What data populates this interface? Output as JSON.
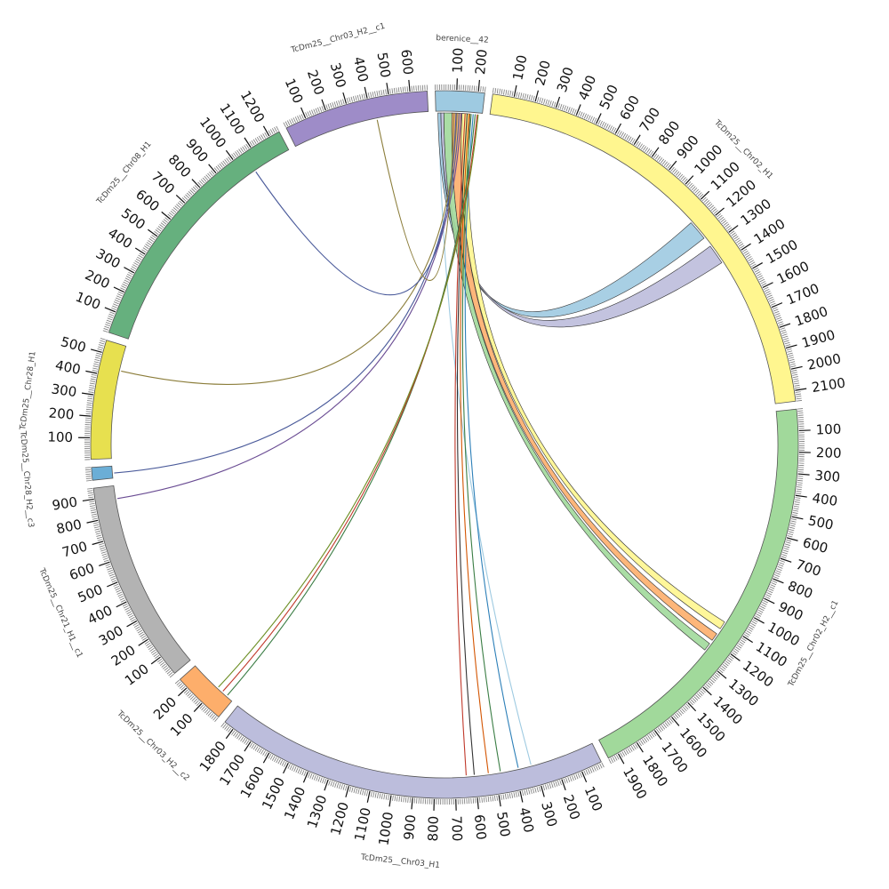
{
  "segments": [
    {
      "id": "berenice",
      "name": "berenice__42",
      "length": 230,
      "color": "#9ecae1",
      "tick_step": 100
    },
    {
      "id": "chr02_h1",
      "name": "TcDm25__Chr02_H1",
      "length": 2150,
      "color": "#fff68f",
      "tick_step": 100
    },
    {
      "id": "chr02_h2_c1",
      "name": "TcDm25__Chr02_H2__c1",
      "length": 1950,
      "color": "#a1d99b",
      "tick_step": 100
    },
    {
      "id": "chr03_h1",
      "name": "TcDm25__Chr03_H1",
      "length": 1850,
      "color": "#bcbddc",
      "tick_step": 100
    },
    {
      "id": "chr03_h2_c2",
      "name": "TcDm25__Chr03_H2__c2",
      "length": 250,
      "color": "#fdae6b",
      "tick_step": 100
    },
    {
      "id": "chr21_h1_c1",
      "name": "TcDm25__Chr21_H1__c1",
      "length": 950,
      "color": "#b3b3b3",
      "tick_step": 100
    },
    {
      "id": "chr28_h2_c3",
      "name": "TcDm25__Chr28_H2__c3",
      "length": 60,
      "color": "#6baed6",
      "tick_step": 100
    },
    {
      "id": "chr28_h1",
      "name": "TcDm25__Chr28_H1",
      "length": 560,
      "color": "#e7e04f",
      "tick_step": 100
    },
    {
      "id": "chr08_h1",
      "name": "TcDm25__Chr08_H1",
      "length": 1250,
      "color": "#66b07e",
      "tick_step": 100
    },
    {
      "id": "chr03_h2_c1",
      "name": "TcDm25__Chr03_H2__c1",
      "length": 680,
      "color": "#9e8cc8",
      "tick_step": 100
    }
  ],
  "links": [
    {
      "from": "berenice",
      "from_start": 0,
      "from_end": 30,
      "to": "chr03_h1",
      "to_start": 300,
      "to_end": 340,
      "color": "#9ecae1",
      "style": "thin"
    },
    {
      "from": "berenice",
      "from_start": 10,
      "from_end": 25,
      "to": "chr02_h1",
      "to_start": 1150,
      "to_end": 1250,
      "color": "#9ecae1",
      "style": "ribbon"
    },
    {
      "from": "berenice",
      "from_start": 25,
      "from_end": 40,
      "to": "chr02_h1",
      "to_start": 1300,
      "to_end": 1400,
      "color": "#bcbddc",
      "style": "ribbon"
    },
    {
      "from": "berenice",
      "from_start": 40,
      "from_end": 80,
      "to": "chr02_h2_c1",
      "to_start": 1220,
      "to_end": 1260,
      "color": "#a1d99b",
      "style": "ribbon"
    },
    {
      "from": "berenice",
      "from_start": 80,
      "from_end": 130,
      "to": "chr02_h2_c1",
      "to_start": 1160,
      "to_end": 1200,
      "color": "#fdae6b",
      "style": "ribbon"
    },
    {
      "from": "berenice",
      "from_start": 130,
      "from_end": 170,
      "to": "chr02_h2_c1",
      "to_start": 1090,
      "to_end": 1130,
      "color": "#fff68f",
      "style": "ribbon"
    },
    {
      "from": "berenice",
      "from_start": 140,
      "from_end": 150,
      "to": "chr03_h1",
      "to_start": 640,
      "to_end": 650,
      "color": "#c0392b",
      "style": "thin"
    },
    {
      "from": "berenice",
      "from_start": 150,
      "from_end": 160,
      "to": "chr03_h1",
      "to_start": 600,
      "to_end": 610,
      "color": "#333333",
      "style": "thin"
    },
    {
      "from": "berenice",
      "from_start": 160,
      "from_end": 170,
      "to": "chr03_h1",
      "to_start": 530,
      "to_end": 540,
      "color": "#d35400",
      "style": "thin"
    },
    {
      "from": "berenice",
      "from_start": 170,
      "from_end": 180,
      "to": "chr03_h1",
      "to_start": 470,
      "to_end": 480,
      "color": "#3a7d44",
      "style": "thin"
    },
    {
      "from": "berenice",
      "from_start": 180,
      "from_end": 190,
      "to": "chr03_h1",
      "to_start": 380,
      "to_end": 390,
      "color": "#2c7fb8",
      "style": "thin"
    },
    {
      "from": "berenice",
      "from_start": 190,
      "from_end": 200,
      "to": "chr03_h2_c2",
      "to_start": 30,
      "to_end": 40,
      "color": "#3a7d44",
      "style": "thin"
    },
    {
      "from": "berenice",
      "from_start": 200,
      "from_end": 210,
      "to": "chr03_h2_c2",
      "to_start": 60,
      "to_end": 70,
      "color": "#c0392b",
      "style": "thin"
    },
    {
      "from": "berenice",
      "from_start": 205,
      "from_end": 215,
      "to": "chr03_h2_c2",
      "to_start": 90,
      "to_end": 100,
      "color": "#6b8e23",
      "style": "thin"
    },
    {
      "from": "berenice",
      "from_start": 100,
      "from_end": 110,
      "to": "chr28_h1",
      "to_start": 430,
      "to_end": 440,
      "color": "#8b7d3a",
      "style": "thin"
    },
    {
      "from": "berenice",
      "from_start": 110,
      "from_end": 120,
      "to": "chr28_h2_c3",
      "to_start": 20,
      "to_end": 30,
      "color": "#4a5a9a",
      "style": "thin"
    },
    {
      "from": "berenice",
      "from_start": 120,
      "from_end": 130,
      "to": "chr21_h1_c1",
      "to_start": 880,
      "to_end": 890,
      "color": "#6a4c93",
      "style": "thin"
    },
    {
      "from": "berenice",
      "from_start": 95,
      "from_end": 105,
      "to": "chr08_h1",
      "to_start": 1050,
      "to_end": 1060,
      "color": "#4a5a9a",
      "style": "thin"
    },
    {
      "from": "berenice",
      "from_start": 85,
      "from_end": 95,
      "to": "chr03_h2_c1",
      "to_start": 420,
      "to_end": 430,
      "color": "#8b7d3a",
      "style": "thin"
    }
  ]
}
